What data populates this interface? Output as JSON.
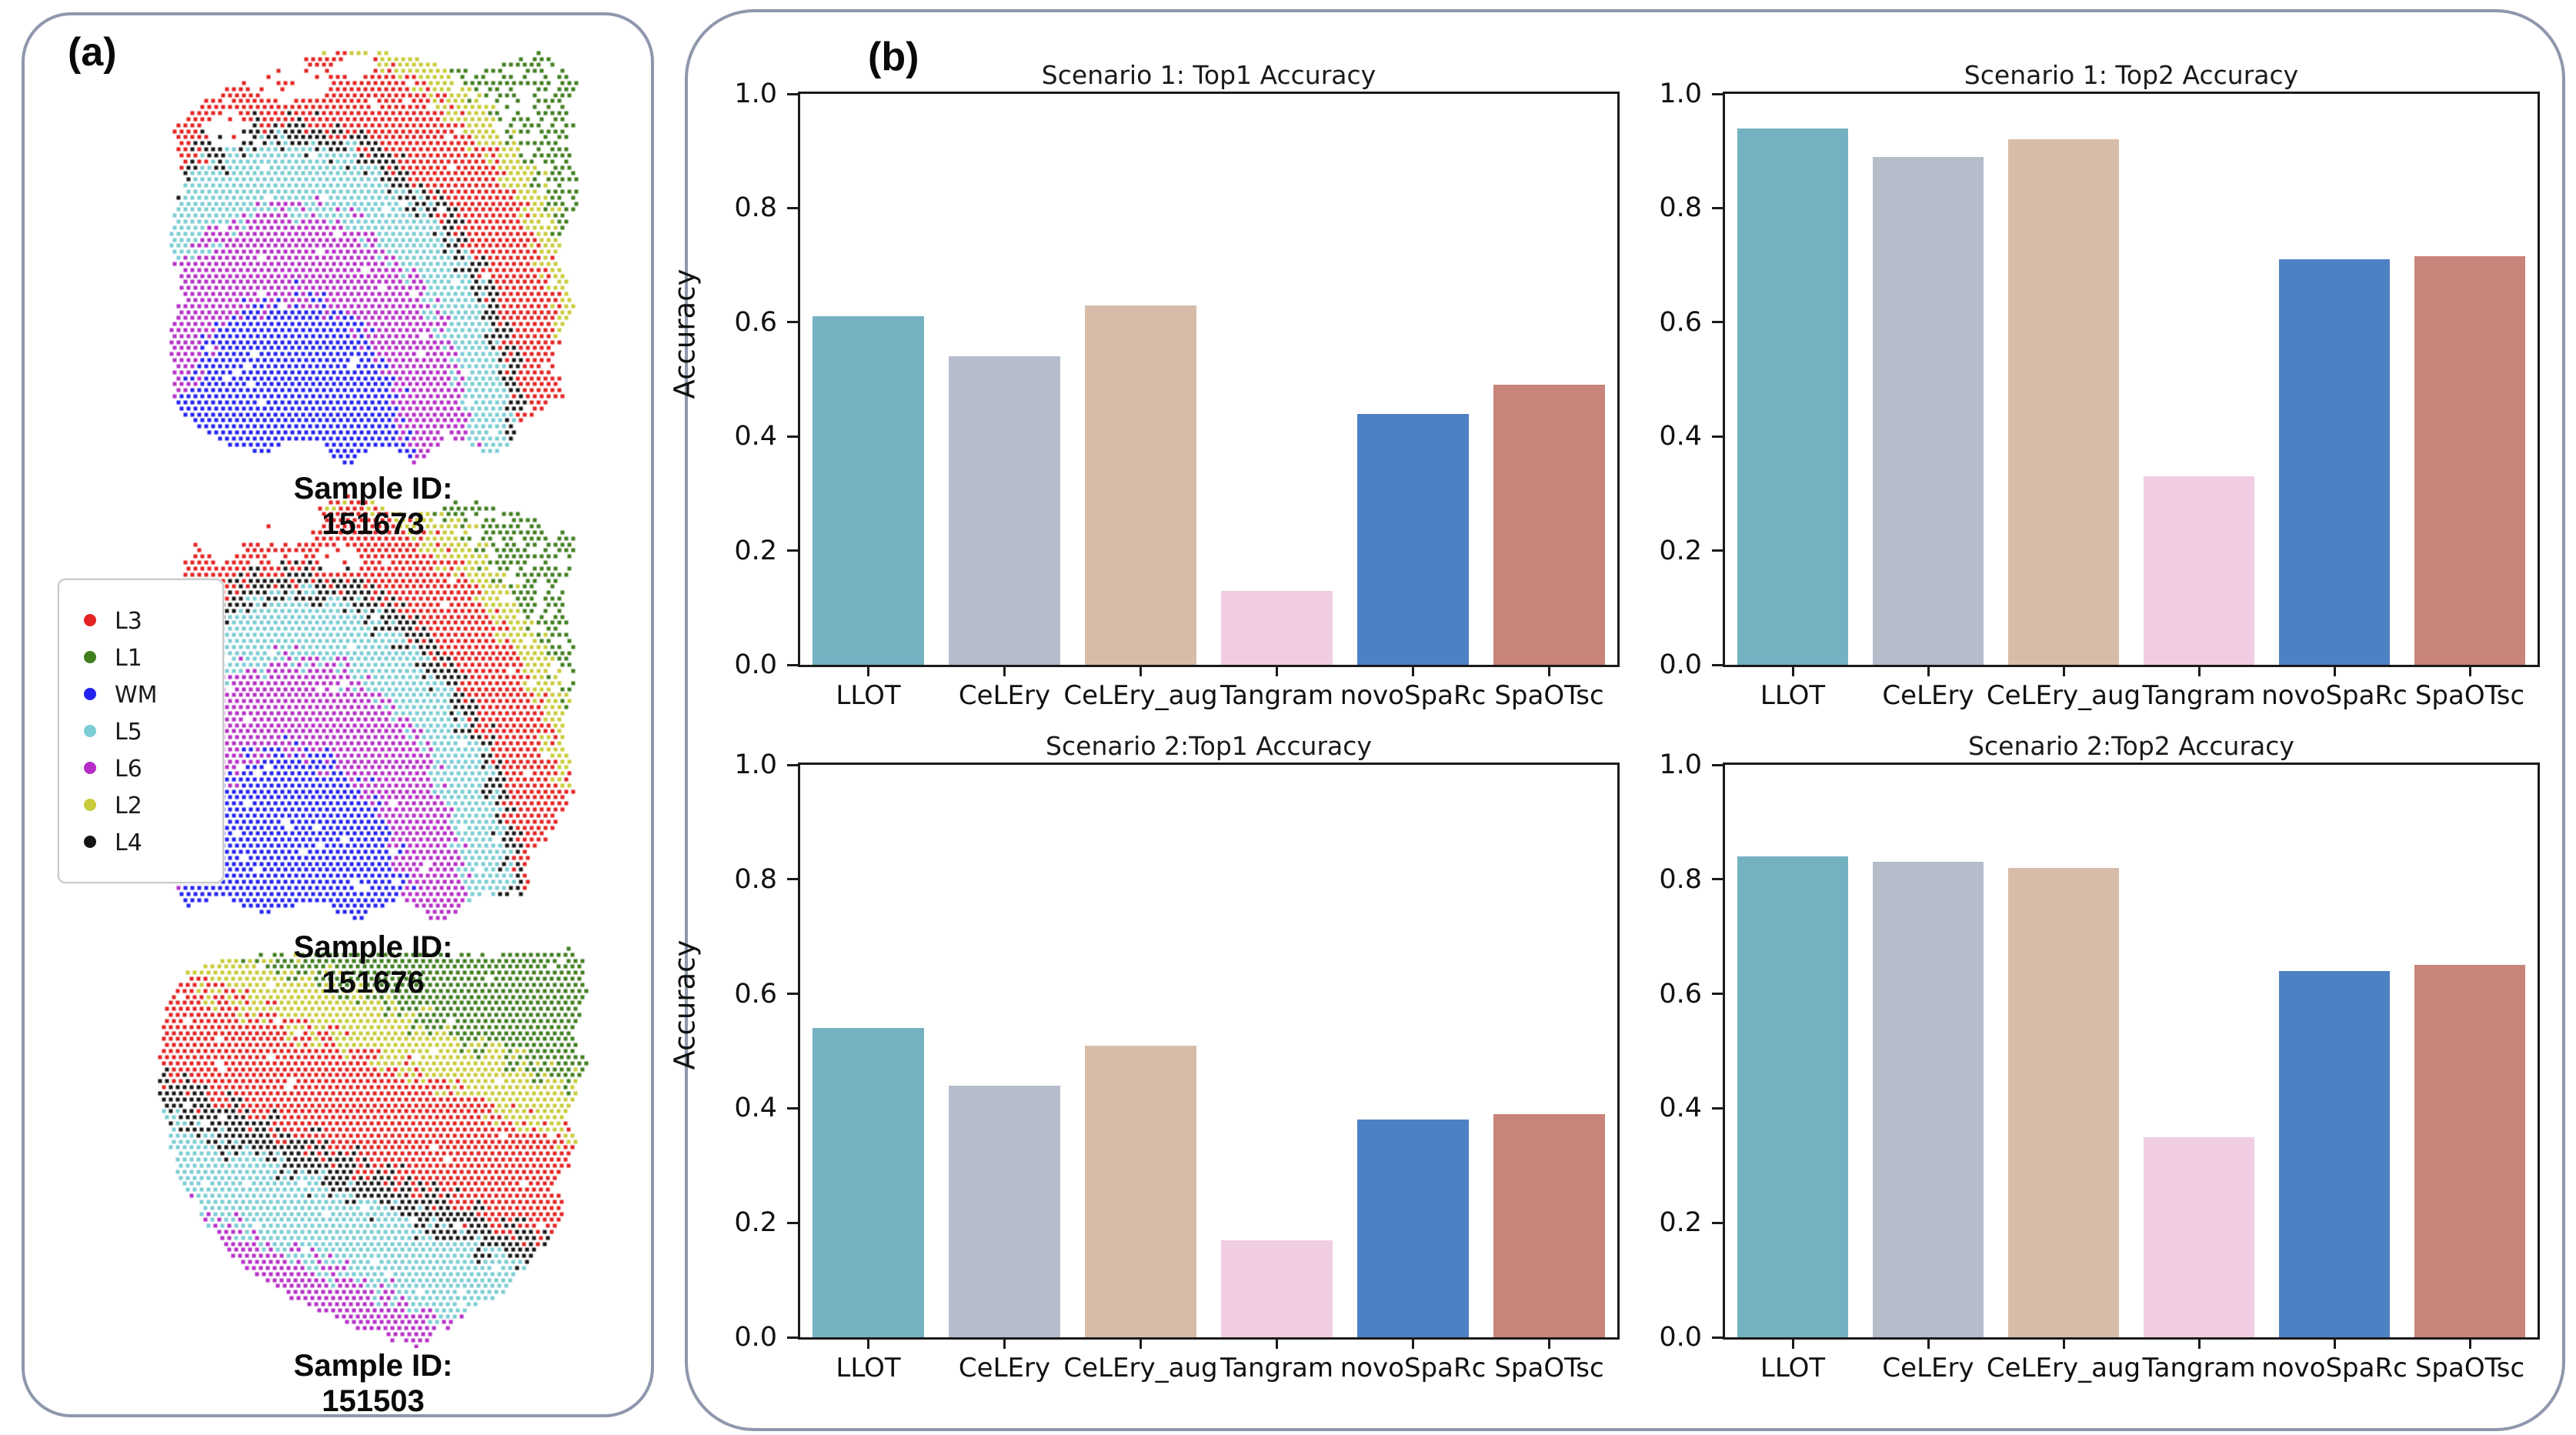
{
  "figure": {
    "background": "#ffffff",
    "panel_border_color": "#8e97ac"
  },
  "panel_a": {
    "label": "(a)",
    "caption_prefix": "Sample ID:",
    "legend": {
      "items": [
        {
          "label": "L3",
          "color": "#e32222"
        },
        {
          "label": "L1",
          "color": "#3f7d1d"
        },
        {
          "label": "WM",
          "color": "#2222f0"
        },
        {
          "label": "L5",
          "color": "#7bccd4"
        },
        {
          "label": "L6",
          "color": "#b62ec6"
        },
        {
          "label": "L2",
          "color": "#c8cb3a"
        },
        {
          "label": "L4",
          "color": "#151515"
        }
      ]
    },
    "samples": [
      {
        "id": "151673",
        "render": {
          "type": "radial",
          "seed": 7,
          "pitch": 9,
          "dot": 5,
          "noise": 0.04,
          "dropout": 0.02,
          "center": [
            0.3,
            1.02
          ],
          "sx": 0.72,
          "sy": 1.06,
          "bands": [
            {
              "layer": "WM",
              "max": 0.4
            },
            {
              "layer": "L6",
              "max": 0.6
            },
            {
              "layer": "L5",
              "max": 0.74
            },
            {
              "layer": "L4",
              "max": 0.79
            },
            {
              "layer": "L3",
              "max": 0.97
            },
            {
              "layer": "L2",
              "max": 1.05
            },
            {
              "layer": "L1",
              "max": 99
            }
          ],
          "sparse_layers": {
            "L1": 0.3
          },
          "holes": [
            {
              "x": 0.3,
              "y": 0.09,
              "rx": 0.1,
              "ry": 0.045
            },
            {
              "x": 0.15,
              "y": 0.2,
              "rx": 0.055,
              "ry": 0.04
            },
            {
              "x": 0.45,
              "y": 0.05,
              "rx": 0.05,
              "ry": 0.03
            }
          ],
          "polygon": [
            [
              0.26,
              0.055
            ],
            [
              0.42,
              0.01
            ],
            [
              0.6,
              0.03
            ],
            [
              0.76,
              0.065
            ],
            [
              0.9,
              0.015
            ],
            [
              0.995,
              0.09
            ],
            [
              0.97,
              0.22
            ],
            [
              0.995,
              0.38
            ],
            [
              0.945,
              0.5
            ],
            [
              0.985,
              0.62
            ],
            [
              0.93,
              0.74
            ],
            [
              0.96,
              0.83
            ],
            [
              0.87,
              0.88
            ],
            [
              0.8,
              0.975
            ],
            [
              0.68,
              0.93
            ],
            [
              0.6,
              0.99
            ],
            [
              0.5,
              0.94
            ],
            [
              0.44,
              1.0
            ],
            [
              0.36,
              0.93
            ],
            [
              0.22,
              0.965
            ],
            [
              0.1,
              0.93
            ],
            [
              0.03,
              0.86
            ],
            [
              0.005,
              0.7
            ],
            [
              0.04,
              0.58
            ],
            [
              0.005,
              0.44
            ],
            [
              0.05,
              0.32
            ],
            [
              0.02,
              0.2
            ],
            [
              0.09,
              0.13
            ]
          ]
        }
      },
      {
        "id": "151676",
        "render": {
          "type": "radial",
          "seed": 8,
          "pitch": 9,
          "dot": 5,
          "noise": 0.04,
          "dropout": 0.02,
          "center": [
            0.3,
            1.02
          ],
          "sx": 0.72,
          "sy": 1.06,
          "bands": [
            {
              "layer": "WM",
              "max": 0.4
            },
            {
              "layer": "L6",
              "max": 0.6
            },
            {
              "layer": "L5",
              "max": 0.74
            },
            {
              "layer": "L4",
              "max": 0.79
            },
            {
              "layer": "L3",
              "max": 0.97
            },
            {
              "layer": "L2",
              "max": 1.05
            },
            {
              "layer": "L1",
              "max": 99
            }
          ],
          "sparse_layers": {
            "L1": 0.3
          },
          "holes": [
            {
              "x": 0.27,
              "y": 0.07,
              "rx": 0.11,
              "ry": 0.05
            },
            {
              "x": 0.42,
              "y": 0.15,
              "rx": 0.05,
              "ry": 0.035
            }
          ],
          "polygon": [
            [
              0.3,
              0.04
            ],
            [
              0.46,
              0.005
            ],
            [
              0.6,
              0.05
            ],
            [
              0.74,
              0.01
            ],
            [
              0.87,
              0.05
            ],
            [
              0.99,
              0.1
            ],
            [
              0.96,
              0.24
            ],
            [
              0.995,
              0.4
            ],
            [
              0.95,
              0.55
            ],
            [
              0.985,
              0.68
            ],
            [
              0.92,
              0.8
            ],
            [
              0.86,
              0.845
            ],
            [
              0.88,
              0.92
            ],
            [
              0.74,
              0.935
            ],
            [
              0.66,
              1.0
            ],
            [
              0.56,
              0.93
            ],
            [
              0.47,
              0.985
            ],
            [
              0.36,
              0.94
            ],
            [
              0.24,
              0.97
            ],
            [
              0.12,
              0.93
            ],
            [
              0.04,
              0.965
            ],
            [
              0.01,
              0.82
            ],
            [
              0.035,
              0.66
            ],
            [
              0.005,
              0.5
            ],
            [
              0.04,
              0.36
            ],
            [
              0.01,
              0.22
            ],
            [
              0.07,
              0.12
            ],
            [
              0.14,
              0.16
            ],
            [
              0.22,
              0.09
            ]
          ]
        }
      },
      {
        "id": "151503",
        "render": {
          "type": "diagonal",
          "seed": 9,
          "pitch": 9,
          "dot": 5,
          "noise": 0.05,
          "dropout": 0.015,
          "coefx": 0.45,
          "coefy": 1.0,
          "bands": [
            {
              "layer": "L1",
              "max": 0.36
            },
            {
              "layer": "L2",
              "max": 0.5
            },
            {
              "layer": "L3",
              "max": 0.78
            },
            {
              "layer": "L4",
              "max": 0.87
            },
            {
              "layer": "L5",
              "max": 1.08
            },
            {
              "layer": "L6",
              "max": 1.27
            },
            {
              "layer": "WM",
              "max": 99
            }
          ],
          "sparse_layers": {},
          "holes": [],
          "polygon": [
            [
              0.24,
              0.02
            ],
            [
              0.5,
              0.005
            ],
            [
              0.75,
              0.02
            ],
            [
              0.97,
              0.005
            ],
            [
              1.0,
              0.09
            ],
            [
              0.965,
              0.22
            ],
            [
              0.995,
              0.3
            ],
            [
              0.95,
              0.42
            ],
            [
              0.97,
              0.5
            ],
            [
              0.92,
              0.6
            ],
            [
              0.945,
              0.665
            ],
            [
              0.88,
              0.77
            ],
            [
              0.8,
              0.86
            ],
            [
              0.7,
              0.93
            ],
            [
              0.6,
              1.0
            ],
            [
              0.5,
              0.96
            ],
            [
              0.4,
              0.925
            ],
            [
              0.3,
              0.87
            ],
            [
              0.195,
              0.795
            ],
            [
              0.115,
              0.7
            ],
            [
              0.05,
              0.58
            ],
            [
              0.015,
              0.44
            ],
            [
              0.0,
              0.28
            ],
            [
              0.025,
              0.12
            ],
            [
              0.08,
              0.05
            ]
          ]
        }
      }
    ]
  },
  "panel_b": {
    "label": "(b)",
    "bar_colors": [
      "#74b2c1",
      "#b5bdcb",
      "#d7bda9",
      "#f0cde3",
      "#4e80c4",
      "#c8837a"
    ]
  },
  "chart_data": [
    {
      "type": "bar",
      "title": "Scenario 1: Top1 Accuracy",
      "categories": [
        "LLOT",
        "CeLEry",
        "CeLEry_aug",
        "Tangram",
        "novoSpaRc",
        "SpaOTsc"
      ],
      "values": [
        0.61,
        0.54,
        0.63,
        0.13,
        0.44,
        0.49
      ],
      "xlabel": "",
      "ylabel": "Accuracy",
      "ylim": [
        0,
        1
      ],
      "yticks": [
        "0.0",
        "0.2",
        "0.4",
        "0.6",
        "0.8",
        "1.0"
      ],
      "grid": false,
      "legend": "none"
    },
    {
      "type": "bar",
      "title": "Scenario 1: Top2 Accuracy",
      "categories": [
        "LLOT",
        "CeLEry",
        "CeLEry_aug",
        "Tangram",
        "novoSpaRc",
        "SpaOTsc"
      ],
      "values": [
        0.94,
        0.89,
        0.92,
        0.33,
        0.71,
        0.715
      ],
      "xlabel": "",
      "ylabel": "",
      "ylim": [
        0,
        1
      ],
      "yticks": [
        "0.0",
        "0.2",
        "0.4",
        "0.6",
        "0.8",
        "1.0"
      ],
      "grid": false,
      "legend": "none"
    },
    {
      "type": "bar",
      "title": "Scenario 2:Top1 Accuracy",
      "categories": [
        "LLOT",
        "CeLEry",
        "CeLEry_aug",
        "Tangram",
        "novoSpaRc",
        "SpaOTsc"
      ],
      "values": [
        0.54,
        0.44,
        0.51,
        0.17,
        0.38,
        0.39
      ],
      "xlabel": "",
      "ylabel": "Accuracy",
      "ylim": [
        0,
        1
      ],
      "yticks": [
        "0.0",
        "0.2",
        "0.4",
        "0.6",
        "0.8",
        "1.0"
      ],
      "grid": false,
      "legend": "none"
    },
    {
      "type": "bar",
      "title": "Scenario 2:Top2 Accuracy",
      "categories": [
        "LLOT",
        "CeLEry",
        "CeLEry_aug",
        "Tangram",
        "novoSpaRc",
        "SpaOTsc"
      ],
      "values": [
        0.84,
        0.83,
        0.82,
        0.35,
        0.64,
        0.65
      ],
      "xlabel": "",
      "ylabel": "",
      "ylim": [
        0,
        1
      ],
      "yticks": [
        "0.0",
        "0.2",
        "0.4",
        "0.6",
        "0.8",
        "1.0"
      ],
      "grid": false,
      "legend": "none"
    }
  ]
}
